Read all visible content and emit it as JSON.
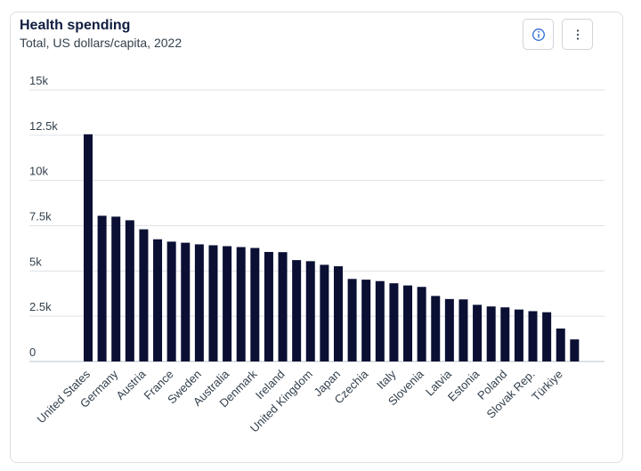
{
  "header": {
    "title": "Health spending",
    "subtitle": "Total, US dollars/capita, 2022",
    "info_icon": "info-icon",
    "more_icon": "more-vertical-icon"
  },
  "chart_data": {
    "type": "bar",
    "title": "Health spending",
    "subtitle": "Total, US dollars/capita, 2022",
    "xlabel": "",
    "ylabel": "",
    "ylim": [
      0,
      15000
    ],
    "yticks": [
      0,
      2500,
      5000,
      7500,
      10000,
      12500,
      15000
    ],
    "ytick_labels": [
      "0",
      "2.5k",
      "5k",
      "7.5k",
      "10k",
      "12.5k",
      "15k"
    ],
    "grid": true,
    "legend": "none",
    "bar_color": "#0a0f33",
    "categories": [
      "United States",
      "",
      "Germany",
      "",
      "Austria",
      "",
      "France",
      "",
      "Sweden",
      "",
      "Australia",
      "",
      "Denmark",
      "",
      "Ireland",
      "",
      "United Kingdom",
      "",
      "Japan",
      "",
      "Czechia",
      "",
      "Italy",
      "",
      "Slovenia",
      "",
      "Latvia",
      "",
      "Estonia",
      "",
      "Poland",
      "",
      "Slovak Rep.",
      "",
      "Türkiye",
      ""
    ],
    "values": [
      12550,
      8050,
      8000,
      7800,
      7300,
      6750,
      6620,
      6560,
      6470,
      6420,
      6370,
      6320,
      6270,
      6050,
      6040,
      5600,
      5540,
      5340,
      5260,
      4560,
      4520,
      4440,
      4320,
      4200,
      4120,
      3620,
      3450,
      3430,
      3130,
      3040,
      2990,
      2870,
      2780,
      2720,
      1820,
      1220
    ]
  }
}
